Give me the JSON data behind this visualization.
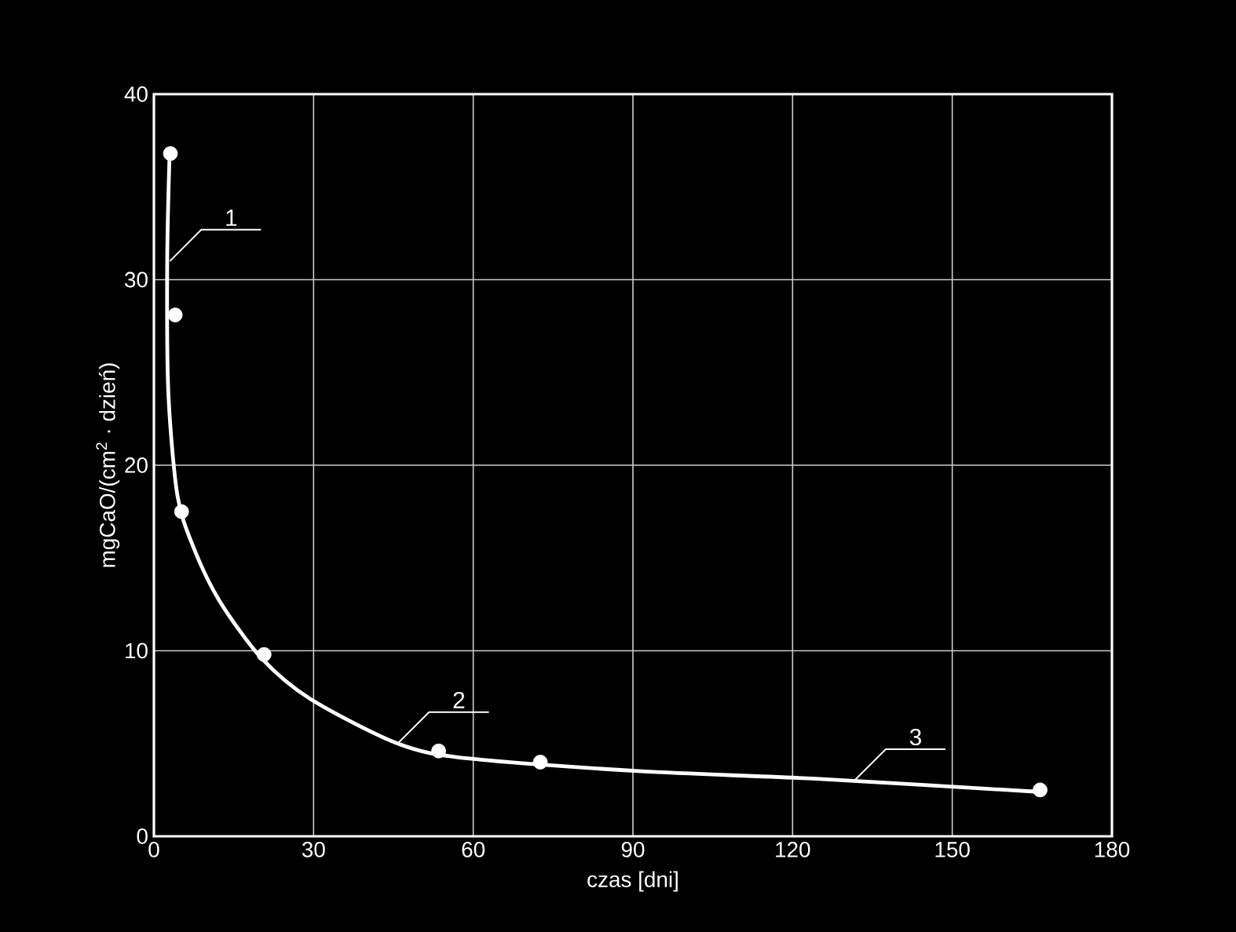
{
  "chart_data": {
    "type": "scatter",
    "xlabel": "czas [dni]",
    "ylabel": "mgCaO/(cm$^{2}$ · dzień)",
    "xlim": [
      0,
      180
    ],
    "ylim": [
      0,
      40
    ],
    "xticks": [
      0,
      30,
      60,
      90,
      120,
      150,
      180
    ],
    "yticks": [
      0,
      10,
      20,
      30,
      40
    ],
    "grid": true,
    "series": [
      {
        "color": "#ffffff",
        "marker": "circle",
        "x": [
          3.1,
          4.0,
          5.2,
          20.7,
          53.5,
          72.6,
          166.5
        ],
        "values": [
          36.8,
          28.1,
          17.5,
          9.8,
          4.6,
          4.0,
          2.5
        ]
      },
      {
        "type": "line",
        "color": "#ffffff",
        "marker": "none",
        "x": [
          2.95,
          2.5,
          2.7,
          4.4,
          7.4,
          12.3,
          20.2,
          29.4,
          45.8,
          58.9,
          91.7,
          124.4,
          166
        ],
        "values": [
          36.8,
          31.1,
          24.0,
          18.4,
          15.6,
          12.7,
          9.6,
          7.4,
          5.0,
          4.2,
          3.5,
          3.1,
          2.4
        ]
      }
    ],
    "annotations": [
      {
        "text": "1",
        "x": 3.0,
        "y": 31.0
      },
      {
        "text": "2",
        "x": 45.8,
        "y": 5.0
      },
      {
        "text": "3",
        "x": 131.6,
        "y": 3.0
      }
    ]
  }
}
